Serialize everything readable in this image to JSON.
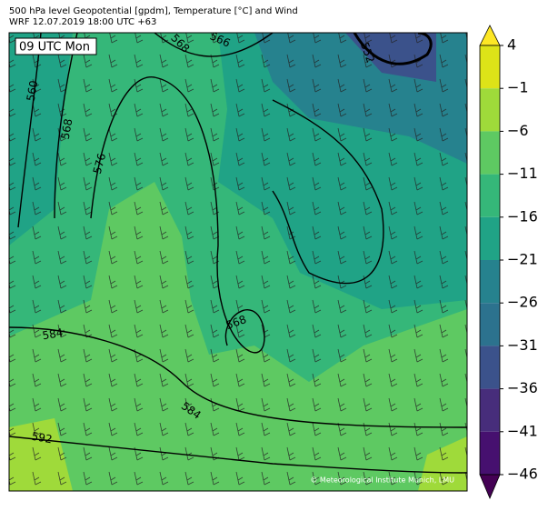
{
  "header": {
    "title": "500 hPa level Geopotential [gpdm], Temperature [°C] and Wind",
    "subtitle": "WRF 12.07.2019 18:00 UTC +63"
  },
  "map": {
    "time_label": "09 UTC Mon",
    "contour_labels": [
      "560",
      "568",
      "576",
      "568",
      "566",
      "552",
      "584",
      "568",
      "584",
      "592"
    ],
    "credit": "© Meteorological Institute Munich, LMU"
  },
  "colorbar": {
    "ticks": [
      "4",
      "−1",
      "−6",
      "−11",
      "−16",
      "−21",
      "−26",
      "−31",
      "−36",
      "−41",
      "−46"
    ],
    "colors": [
      "#fde725",
      "#dde318",
      "#9fda3a",
      "#5ec962",
      "#35b779",
      "#20a386",
      "#26828e",
      "#2c728e",
      "#3b528b",
      "#472d7b",
      "#46106f",
      "#440154"
    ]
  }
}
